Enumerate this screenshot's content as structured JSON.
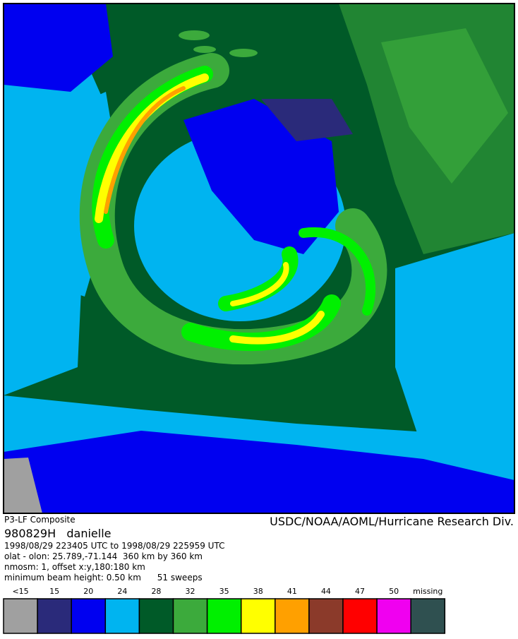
{
  "header": {
    "product": "P3-LF Composite",
    "credit": "USDC/NOAA/AOML/Hurricane Research Div.",
    "storm": "980829H   danielle",
    "lines": [
      "1998/08/29 223405 UTC to 1998/08/29 225959 UTC",
      "olat - olon: 25.789,-71.144  360 km by 360 km",
      "nmosm: 1, offset x:y,180:180 km",
      "minimum beam height: 0.50 km      51 sweeps"
    ]
  },
  "legend": {
    "items": [
      {
        "label": "<15",
        "color": "#a0a0a0"
      },
      {
        "label": "15",
        "color": "#2a2a7a"
      },
      {
        "label": "20",
        "color": "#0000f0"
      },
      {
        "label": "24",
        "color": "#00b4f0"
      },
      {
        "label": "28",
        "color": "#005a28"
      },
      {
        "label": "32",
        "color": "#3caa3c"
      },
      {
        "label": "35",
        "color": "#00f000"
      },
      {
        "label": "38",
        "color": "#ffff00"
      },
      {
        "label": "41",
        "color": "#ffa000"
      },
      {
        "label": "44",
        "color": "#8b3a2a"
      },
      {
        "label": "47",
        "color": "#ff0000"
      },
      {
        "label": "50",
        "color": "#f000f0"
      },
      {
        "label": "missing",
        "color": "#2f5050"
      }
    ]
  }
}
